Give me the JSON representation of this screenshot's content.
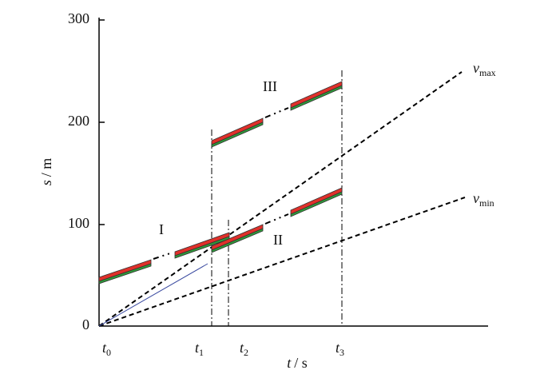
{
  "axes": {
    "y_label": {
      "var": "s",
      "rest": "/ m"
    },
    "x_label": {
      "var": "t",
      "rest": "/ s"
    },
    "y_ticks": [
      "0",
      "100",
      "200",
      "300"
    ]
  },
  "time_marks": [
    {
      "main": "t",
      "sub": "0"
    },
    {
      "main": "t",
      "sub": "1"
    },
    {
      "main": "t",
      "sub": "2"
    },
    {
      "main": "t",
      "sub": "3"
    }
  ],
  "speed_lines": [
    {
      "main": "v",
      "sub": "max"
    },
    {
      "main": "v",
      "sub": "min"
    }
  ],
  "regions": [
    "I",
    "II",
    "III"
  ]
}
